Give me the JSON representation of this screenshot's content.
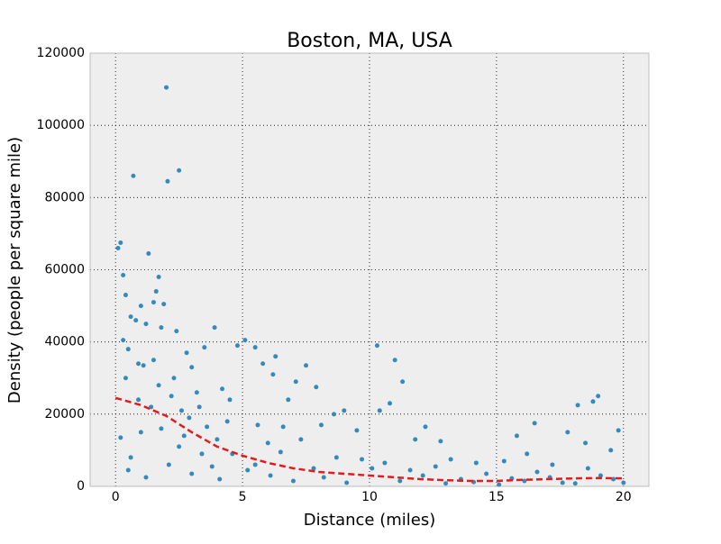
{
  "chart_data": {
    "type": "scatter",
    "title": "Boston, MA, USA",
    "x_label": "Distance (miles)",
    "y_label": "Density (people per square mile)",
    "xlim": [
      -1,
      21
    ],
    "ylim": [
      0,
      120000
    ],
    "xticks": [
      0,
      5,
      10,
      15,
      20
    ],
    "yticks": [
      0,
      20000,
      40000,
      60000,
      80000,
      100000,
      120000
    ],
    "grid": true,
    "series": [
      {
        "color": "#348abd",
        "kind": "points",
        "x": [
          0.1,
          0.2,
          0.3,
          0.4,
          0.3,
          0.5,
          0.6,
          0.7,
          0.8,
          0.9,
          1.0,
          1.1,
          1.3,
          1.2,
          1.5,
          1.6,
          1.7,
          1.8,
          1.9,
          2.0,
          2.05,
          2.3,
          2.5,
          2.4,
          2.8,
          3.0,
          3.3,
          3.5,
          3.9,
          4.2,
          4.5,
          4.8,
          5.1,
          5.5,
          5.8,
          6.2,
          6.3,
          6.8,
          7.1,
          7.5,
          7.9,
          10.3,
          11.0,
          11.3,
          10.8,
          10.4,
          19.0,
          18.8,
          18.2,
          17.8,
          16.5,
          15.8,
          19.8,
          19.5,
          18.5,
          17.2,
          16.2,
          15.3,
          14.2,
          13.2,
          12.8,
          12.2,
          11.8,
          9.5,
          9.0,
          8.6,
          8.1,
          7.3,
          6.6,
          6.0,
          5.6,
          4.6,
          4.0,
          3.6,
          3.2,
          2.9,
          2.6,
          2.2,
          1.7,
          1.4,
          1.0,
          0.6,
          0.2,
          0.5,
          1.2,
          2.1,
          3.0,
          4.1,
          5.2,
          6.1,
          7.0,
          8.2,
          9.1,
          10.1,
          11.2,
          12.1,
          13.0,
          14.1,
          15.1,
          16.1,
          17.1,
          18.1,
          19.1,
          20.0,
          10.6,
          11.6,
          12.6,
          13.6,
          14.6,
          15.6,
          16.6,
          17.6,
          18.6,
          19.6,
          8.7,
          9.7,
          5.5,
          6.5,
          7.8,
          3.8,
          2.5,
          1.8,
          0.9,
          0.4,
          1.5,
          2.7,
          3.4,
          4.4
        ],
        "values": [
          66000,
          67500,
          58500,
          53000,
          40500,
          38000,
          47000,
          86000,
          46000,
          34000,
          50000,
          33500,
          64500,
          45000,
          51000,
          54000,
          58000,
          44000,
          50500,
          110500,
          84500,
          30000,
          87500,
          43000,
          37000,
          33000,
          22000,
          38500,
          44000,
          27000,
          24000,
          39000,
          40500,
          38500,
          34000,
          31000,
          36000,
          24000,
          29000,
          33500,
          27500,
          39000,
          35000,
          29000,
          23000,
          21000,
          25000,
          23500,
          22500,
          15000,
          17500,
          14000,
          15500,
          10000,
          12000,
          6000,
          9000,
          7000,
          6500,
          7500,
          12500,
          16500,
          13000,
          15500,
          21000,
          20000,
          17000,
          13000,
          16500,
          12000,
          17000,
          9000,
          13000,
          16500,
          26000,
          19000,
          21000,
          25000,
          28000,
          22000,
          15000,
          8000,
          13500,
          4500,
          2500,
          6000,
          3500,
          2000,
          4500,
          3000,
          1500,
          2500,
          1000,
          5000,
          1500,
          3000,
          800,
          1200,
          500,
          1500,
          2500,
          800,
          3000,
          1000,
          6500,
          4500,
          5500,
          2000,
          3500,
          2200,
          4000,
          1000,
          5000,
          2000,
          8000,
          7500,
          6000,
          9500,
          5000,
          5500,
          11000,
          16000,
          24000,
          30000,
          35000,
          14000,
          9000,
          18000
        ]
      },
      {
        "color": "#e41a1c",
        "kind": "dashed-line",
        "x": [
          0,
          1,
          2,
          3,
          4,
          5,
          6,
          7,
          8,
          9,
          10,
          11,
          12,
          13,
          14,
          15,
          16,
          17,
          18,
          19,
          20
        ],
        "values": [
          24500,
          22500,
          19500,
          15000,
          11000,
          8500,
          6500,
          5000,
          4000,
          3500,
          3000,
          2500,
          2000,
          1700,
          1500,
          1500,
          1800,
          2000,
          2200,
          2300,
          2200
        ]
      }
    ]
  }
}
